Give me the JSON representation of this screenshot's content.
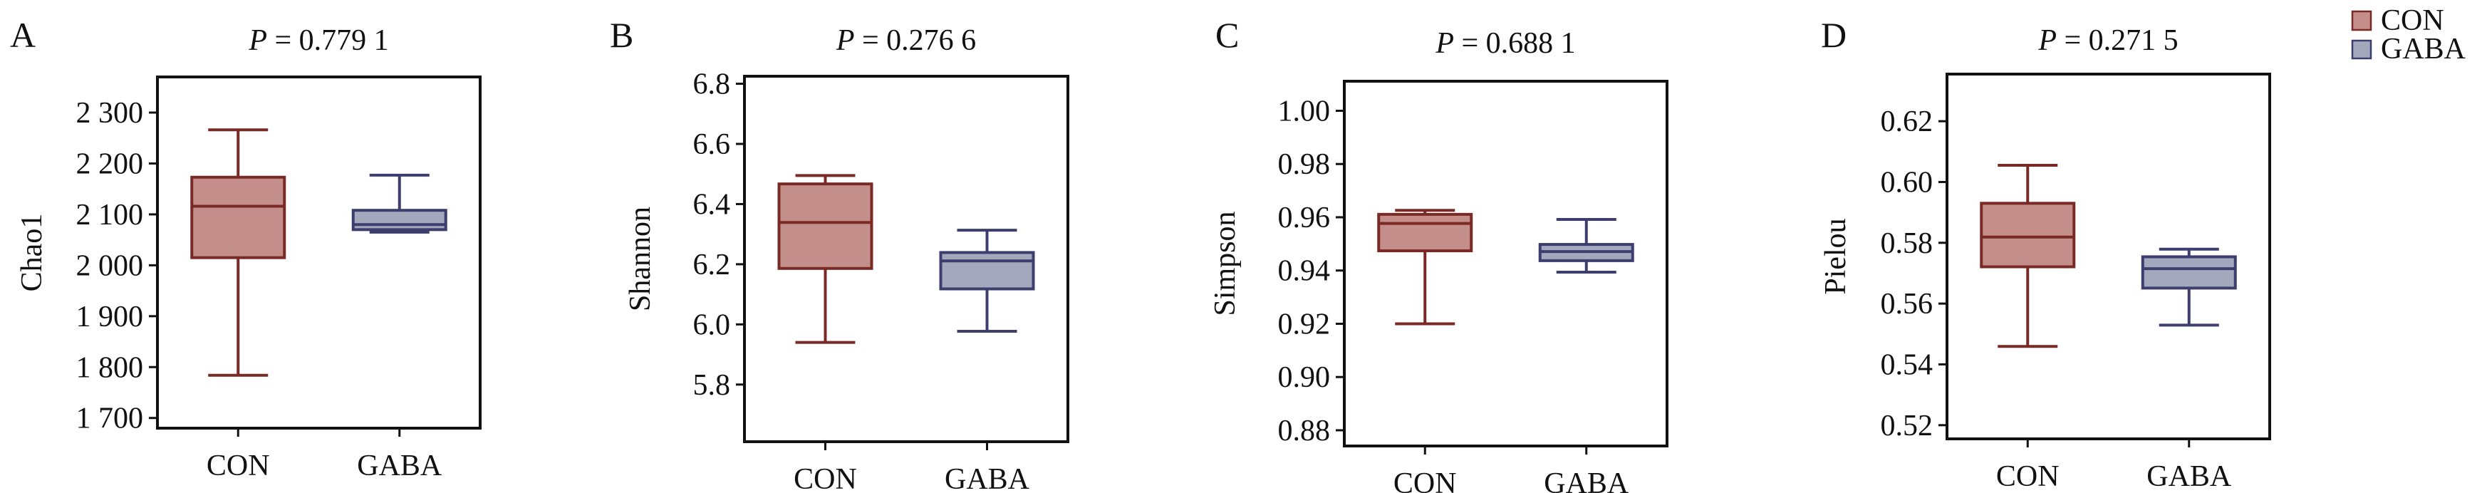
{
  "figure": {
    "groups": [
      "CON",
      "GABA"
    ],
    "colors": {
      "CON": {
        "fill": "#C48E8A",
        "stroke": "#7A2A25"
      },
      "GABA": {
        "fill": "#A3A8BD",
        "stroke": "#3D3E6E"
      },
      "axis": "#111111"
    },
    "legend": {
      "position": "top-right",
      "items": [
        {
          "label": "CON",
          "group": "CON"
        },
        {
          "label": "GABA",
          "group": "GABA"
        }
      ]
    }
  },
  "chart_data": [
    {
      "type": "box",
      "panel": "A",
      "title": "P = 0.779 1",
      "title_italic": "P",
      "title_rest": " = 0.779 1",
      "ylabel": "Chao1",
      "xlabel": "",
      "categories": [
        "CON",
        "GABA"
      ],
      "ylim": [
        1680,
        2370
      ],
      "yticks": [
        1700,
        1800,
        1900,
        2000,
        2100,
        2200,
        2300
      ],
      "ytick_labels": [
        "1 700",
        "1 800",
        "1 900",
        "2 000",
        "2 100",
        "2 200",
        "2 300"
      ],
      "series": [
        {
          "name": "CON",
          "min": 1784,
          "q1": 2015,
          "median": 2116,
          "q3": 2173,
          "max": 2266
        },
        {
          "name": "GABA",
          "min": 2065,
          "q1": 2070,
          "median": 2080,
          "q3": 2108,
          "max": 2177
        }
      ]
    },
    {
      "type": "box",
      "panel": "B",
      "title": "P = 0.276 6",
      "title_italic": "P",
      "title_rest": " = 0.276 6",
      "ylabel": "Shannon",
      "xlabel": "",
      "categories": [
        "CON",
        "GABA"
      ],
      "ylim": [
        5.61,
        6.825
      ],
      "yticks": [
        5.8,
        6.0,
        6.2,
        6.4,
        6.6,
        6.8
      ],
      "ytick_labels": [
        "5.8",
        "6.0",
        "6.2",
        "6.4",
        "6.6",
        "6.8"
      ],
      "series": [
        {
          "name": "CON",
          "min": 5.94,
          "q1": 6.186,
          "median": 6.339,
          "q3": 6.467,
          "max": 6.495
        },
        {
          "name": "GABA",
          "min": 5.977,
          "q1": 6.118,
          "median": 6.211,
          "q3": 6.239,
          "max": 6.313
        }
      ]
    },
    {
      "type": "box",
      "panel": "C",
      "title": "P = 0.688 1",
      "title_italic": "P",
      "title_rest": " = 0.688 1",
      "ylabel": "Simpson",
      "xlabel": "",
      "categories": [
        "CON",
        "GABA"
      ],
      "ylim": [
        0.8741,
        1.0111
      ],
      "yticks": [
        0.88,
        0.9,
        0.92,
        0.94,
        0.96,
        0.98,
        1.0
      ],
      "ytick_labels": [
        "0.88",
        "0.90",
        "0.92",
        "0.94",
        "0.96",
        "0.98",
        "1.00"
      ],
      "series": [
        {
          "name": "CON",
          "min": 0.92,
          "q1": 0.9474,
          "median": 0.9577,
          "q3": 0.9611,
          "max": 0.9626
        },
        {
          "name": "GABA",
          "min": 0.9394,
          "q1": 0.9437,
          "median": 0.9471,
          "q3": 0.9498,
          "max": 0.9592
        }
      ]
    },
    {
      "type": "box",
      "panel": "D",
      "title": "P = 0.271 5",
      "title_italic": "P",
      "title_rest": " = 0.271 5",
      "ylabel": "Pielou",
      "xlabel": "",
      "categories": [
        "CON",
        "GABA"
      ],
      "ylim": [
        0.5155,
        0.6355
      ],
      "yticks": [
        0.52,
        0.54,
        0.56,
        0.58,
        0.6,
        0.62
      ],
      "ytick_labels": [
        "0.52",
        "0.54",
        "0.56",
        "0.58",
        "0.60",
        "0.62"
      ],
      "series": [
        {
          "name": "CON",
          "min": 0.5459,
          "q1": 0.5721,
          "median": 0.5819,
          "q3": 0.593,
          "max": 0.6055
        },
        {
          "name": "GABA",
          "min": 0.5529,
          "q1": 0.5651,
          "median": 0.5715,
          "q3": 0.5754,
          "max": 0.5779
        }
      ]
    }
  ]
}
